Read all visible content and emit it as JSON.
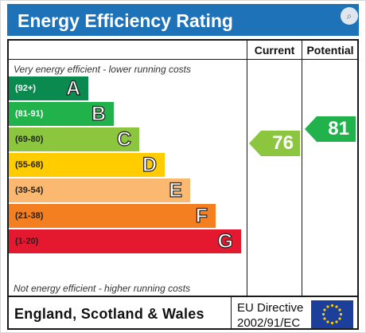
{
  "chart_data": {
    "type": "bar",
    "title": "Energy Efficiency Rating",
    "columns": [
      "Current",
      "Potential"
    ],
    "top_caption": "Very energy efficient - lower running costs",
    "bottom_caption": "Not energy efficient - higher running costs",
    "bands": [
      {
        "range": "(92+)",
        "letter": "A",
        "color": "#0a8a4f",
        "range_color": "#ffffff"
      },
      {
        "range": "(81-91)",
        "letter": "B",
        "color": "#21b24b",
        "range_color": "#ffffff"
      },
      {
        "range": "(69-80)",
        "letter": "C",
        "color": "#8cc63f",
        "range_color": "#222222"
      },
      {
        "range": "(55-68)",
        "letter": "D",
        "color": "#ffcc00",
        "range_color": "#222222"
      },
      {
        "range": "(39-54)",
        "letter": "E",
        "color": "#fbb870",
        "range_color": "#222222"
      },
      {
        "range": "(21-38)",
        "letter": "F",
        "color": "#f37f20",
        "range_color": "#222222"
      },
      {
        "range": "(1-20)",
        "letter": "G",
        "color": "#e4182f",
        "range_color": "#222222"
      }
    ],
    "current": {
      "value": "76",
      "band": "C",
      "color": "#8cc63f"
    },
    "potential": {
      "value": "81",
      "band": "B",
      "color": "#21b24b"
    }
  },
  "footer": {
    "country": "England, Scotland & Wales",
    "directive_line1": "EU Directive",
    "directive_line2": "2002/91/EC"
  },
  "zoom_icon": "zoom-in-icon"
}
